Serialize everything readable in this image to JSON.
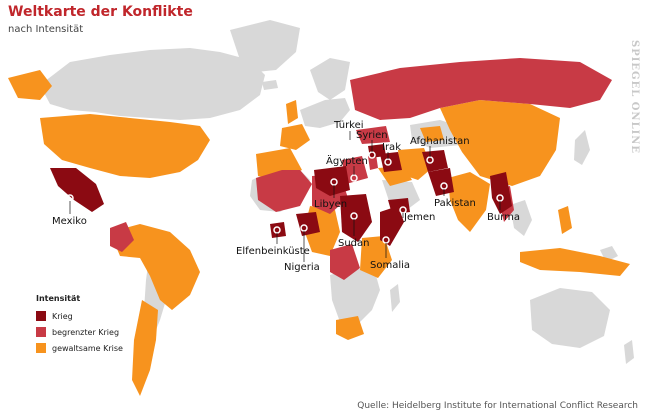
{
  "title": "Weltkarte der Konflikte",
  "subtitle": "nach Intensität",
  "watermark": "SPIEGEL ONLINE",
  "source": "Quelle: Heidelberg Institute for International Conflict Research",
  "legend": {
    "title": "Intensität",
    "items": [
      {
        "label": "Krieg",
        "color": "#8b0a12"
      },
      {
        "label": "begrenzter Krieg",
        "color": "#c83a45"
      },
      {
        "label": "gewaltsame Krise",
        "color": "#f7931e"
      }
    ]
  },
  "colors": {
    "land": "#d8d8d8",
    "krieg": "#8b0a12",
    "begrenzter_krieg": "#c83a45",
    "gewaltsame_krise": "#f7931e"
  },
  "labels": {
    "tuerkei": "Türkei",
    "syrien": "Syrien",
    "aegypten": "Ägypten",
    "irak": "Irak",
    "afghanistan": "Afghanistan",
    "libyen": "Libyen",
    "jemen": "Jemen",
    "pakistan": "Pakistan",
    "burma": "Burma",
    "mexiko": "Mexiko",
    "elfenbeinkueste": "Elfenbeinküste",
    "sudan": "Sudan",
    "somalia": "Somalia",
    "nigeria": "Nigeria"
  }
}
